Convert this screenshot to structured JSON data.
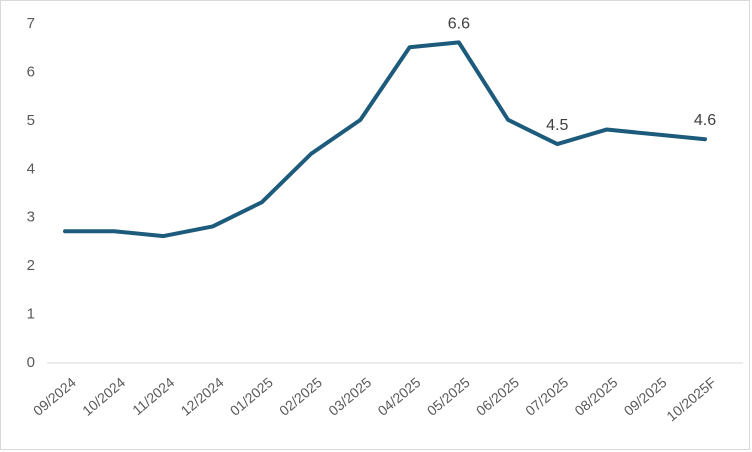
{
  "chart_data": {
    "type": "line",
    "categories": [
      "09/2024",
      "10/2024",
      "11/2024",
      "12/2024",
      "01/2025",
      "02/2025",
      "03/2025",
      "04/2025",
      "05/2025",
      "06/2025",
      "07/2025",
      "08/2025",
      "09/2025",
      "10/2025F"
    ],
    "series": [
      {
        "name": "value",
        "values": [
          2.7,
          2.7,
          2.6,
          2.8,
          3.3,
          4.3,
          5.0,
          6.5,
          6.6,
          5.0,
          4.5,
          4.8,
          4.7,
          4.6
        ]
      }
    ],
    "data_labels": [
      {
        "index": 8,
        "text": "6.6"
      },
      {
        "index": 10,
        "text": "4.5"
      },
      {
        "index": 13,
        "text": "4.6"
      }
    ],
    "title": "",
    "xlabel": "",
    "ylabel": "",
    "ylim": [
      0,
      7
    ],
    "yticks": [
      0,
      1,
      2,
      3,
      4,
      5,
      6,
      7
    ],
    "grid": false,
    "legend_position": "none",
    "line_color": "#1d5b7c",
    "axis_color": "#d9d9d9",
    "tick_label_color": "#595959",
    "data_label_color": "#404040"
  }
}
